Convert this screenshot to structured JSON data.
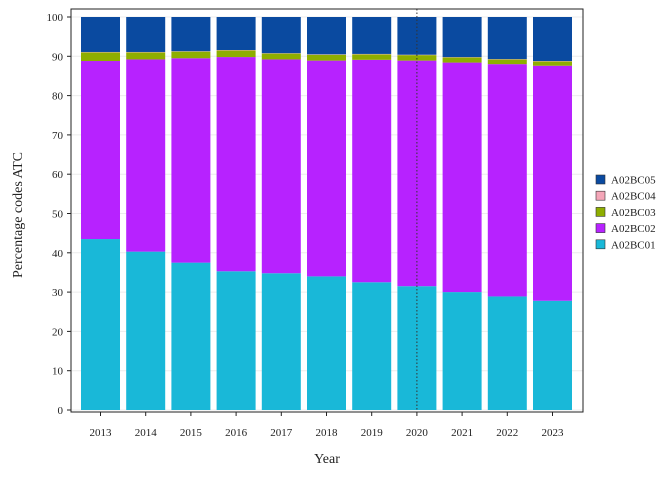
{
  "chart_data": {
    "type": "bar",
    "stacked": true,
    "xlabel": "Year",
    "ylabel": "Percentage codes ATC",
    "ylim": [
      0,
      100
    ],
    "y_ticks": [
      0,
      10,
      20,
      30,
      40,
      50,
      60,
      70,
      80,
      90,
      100
    ],
    "grid": true,
    "legend_position": "right",
    "reference_line": {
      "x": "2020",
      "style": "dotted"
    },
    "categories": [
      "2013",
      "2014",
      "2015",
      "2016",
      "2017",
      "2018",
      "2019",
      "2020",
      "2021",
      "2022",
      "2023"
    ],
    "series": [
      {
        "name": "A02BC01",
        "color": "#19B8D8",
        "values": [
          43.5,
          40.3,
          37.5,
          35.3,
          34.8,
          34.0,
          32.5,
          31.5,
          30.0,
          28.9,
          27.8
        ]
      },
      {
        "name": "A02BC02",
        "color": "#B722FF",
        "values": [
          45.3,
          48.9,
          52.0,
          54.5,
          54.4,
          54.9,
          56.6,
          57.4,
          58.4,
          59.1,
          59.8
        ]
      },
      {
        "name": "A02BC03",
        "color": "#8EAE00",
        "values": [
          2.2,
          1.8,
          1.7,
          1.7,
          1.5,
          1.5,
          1.4,
          1.4,
          1.3,
          1.2,
          1.1
        ]
      },
      {
        "name": "A02BC04",
        "color": "#F4A6B8",
        "values": [
          0.1,
          0.1,
          0.1,
          0.1,
          0.1,
          0.1,
          0.1,
          0.1,
          0.1,
          0.1,
          0.1
        ]
      },
      {
        "name": "A02BC05",
        "color": "#0A4AA0",
        "values": [
          8.9,
          8.9,
          8.7,
          8.4,
          9.2,
          9.5,
          9.4,
          9.6,
          10.2,
          10.7,
          11.2
        ]
      }
    ]
  }
}
